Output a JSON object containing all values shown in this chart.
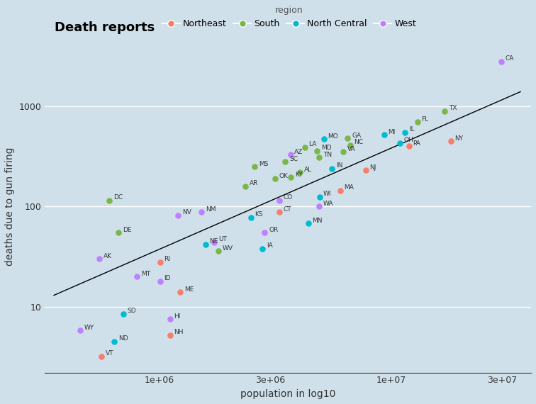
{
  "title": "Death reports",
  "xlabel": "population in log10",
  "ylabel": "deaths due to gun firing",
  "background_color": "#cfe0eb",
  "regions": [
    "Northeast",
    "South",
    "North Central",
    "West"
  ],
  "region_colors": {
    "Northeast": "#f87d6a",
    "South": "#7ab648",
    "North Central": "#00bcd0",
    "West": "#bf80ff"
  },
  "states": [
    {
      "name": "CA",
      "pop": 29760021,
      "deaths": 2800,
      "region": "West"
    },
    {
      "name": "TX",
      "pop": 16986510,
      "deaths": 900,
      "region": "South"
    },
    {
      "name": "NY",
      "pop": 17990455,
      "deaths": 450,
      "region": "Northeast"
    },
    {
      "name": "FL",
      "pop": 12937926,
      "deaths": 700,
      "region": "South"
    },
    {
      "name": "PA",
      "pop": 11881643,
      "deaths": 400,
      "region": "Northeast"
    },
    {
      "name": "IL",
      "pop": 11430602,
      "deaths": 550,
      "region": "North Central"
    },
    {
      "name": "GA",
      "pop": 6478216,
      "deaths": 480,
      "region": "South"
    },
    {
      "name": "MI",
      "pop": 9295297,
      "deaths": 520,
      "region": "North Central"
    },
    {
      "name": "OH",
      "pop": 10847115,
      "deaths": 430,
      "region": "North Central"
    },
    {
      "name": "NC",
      "pop": 6628637,
      "deaths": 410,
      "region": "South"
    },
    {
      "name": "NJ",
      "pop": 7730188,
      "deaths": 230,
      "region": "Northeast"
    },
    {
      "name": "VA",
      "pop": 6187358,
      "deaths": 350,
      "region": "South"
    },
    {
      "name": "MA",
      "pop": 6016425,
      "deaths": 145,
      "region": "Northeast"
    },
    {
      "name": "IN",
      "pop": 5544159,
      "deaths": 240,
      "region": "North Central"
    },
    {
      "name": "MO",
      "pop": 5117073,
      "deaths": 470,
      "region": "North Central"
    },
    {
      "name": "WI",
      "pop": 4891769,
      "deaths": 125,
      "region": "North Central"
    },
    {
      "name": "TN",
      "pop": 4877185,
      "deaths": 310,
      "region": "South"
    },
    {
      "name": "WA",
      "pop": 4866692,
      "deaths": 100,
      "region": "West"
    },
    {
      "name": "AZ",
      "pop": 3665228,
      "deaths": 330,
      "region": "West"
    },
    {
      "name": "MN",
      "pop": 4375099,
      "deaths": 68,
      "region": "North Central"
    },
    {
      "name": "AL",
      "pop": 4040587,
      "deaths": 220,
      "region": "South"
    },
    {
      "name": "LA",
      "pop": 4219973,
      "deaths": 390,
      "region": "South"
    },
    {
      "name": "KY",
      "pop": 3685296,
      "deaths": 195,
      "region": "South"
    },
    {
      "name": "MD",
      "pop": 4781468,
      "deaths": 360,
      "region": "South"
    },
    {
      "name": "SC",
      "pop": 3486703,
      "deaths": 280,
      "region": "South"
    },
    {
      "name": "CO",
      "pop": 3294394,
      "deaths": 115,
      "region": "West"
    },
    {
      "name": "OR",
      "pop": 2842321,
      "deaths": 55,
      "region": "West"
    },
    {
      "name": "CT",
      "pop": 3287116,
      "deaths": 88,
      "region": "Northeast"
    },
    {
      "name": "OK",
      "pop": 3145585,
      "deaths": 190,
      "region": "South"
    },
    {
      "name": "AR",
      "pop": 2350725,
      "deaths": 160,
      "region": "South"
    },
    {
      "name": "MS",
      "pop": 2573216,
      "deaths": 250,
      "region": "South"
    },
    {
      "name": "KS",
      "pop": 2477574,
      "deaths": 78,
      "region": "North Central"
    },
    {
      "name": "NM",
      "pop": 1515069,
      "deaths": 88,
      "region": "West"
    },
    {
      "name": "NV",
      "pop": 1201833,
      "deaths": 82,
      "region": "West"
    },
    {
      "name": "NE",
      "pop": 1578385,
      "deaths": 42,
      "region": "North Central"
    },
    {
      "name": "WV",
      "pop": 1793477,
      "deaths": 36,
      "region": "South"
    },
    {
      "name": "UT",
      "pop": 1722850,
      "deaths": 44,
      "region": "West"
    },
    {
      "name": "IA",
      "pop": 2776755,
      "deaths": 38,
      "region": "North Central"
    },
    {
      "name": "DE",
      "pop": 666168,
      "deaths": 55,
      "region": "South"
    },
    {
      "name": "RI",
      "pop": 1003464,
      "deaths": 28,
      "region": "Northeast"
    },
    {
      "name": "MT",
      "pop": 799065,
      "deaths": 20,
      "region": "West"
    },
    {
      "name": "ME",
      "pop": 1227928,
      "deaths": 14,
      "region": "Northeast"
    },
    {
      "name": "ID",
      "pop": 1006749,
      "deaths": 18,
      "region": "West"
    },
    {
      "name": "SD",
      "pop": 696004,
      "deaths": 8.5,
      "region": "North Central"
    },
    {
      "name": "HI",
      "pop": 1108229,
      "deaths": 7.5,
      "region": "West"
    },
    {
      "name": "NH",
      "pop": 1109252,
      "deaths": 5.2,
      "region": "Northeast"
    },
    {
      "name": "AK",
      "pop": 550043,
      "deaths": 30,
      "region": "West"
    },
    {
      "name": "WY",
      "pop": 453588,
      "deaths": 5.8,
      "region": "West"
    },
    {
      "name": "ND",
      "pop": 638800,
      "deaths": 4.5,
      "region": "North Central"
    },
    {
      "name": "VT",
      "pop": 562758,
      "deaths": 3.2,
      "region": "Northeast"
    },
    {
      "name": "DC",
      "pop": 606900,
      "deaths": 115,
      "region": "South"
    }
  ],
  "fit_line": {
    "x_start": 350000,
    "x_end": 36000000,
    "y_start": 13,
    "y_end": 1400
  },
  "xlim": [
    320000.0,
    40000000.0
  ],
  "ylim": [
    2.2,
    4500
  ],
  "yticks": [
    10,
    100,
    1000
  ],
  "xticks": [
    1000000.0,
    3000000.0,
    10000000.0,
    30000000.0
  ]
}
